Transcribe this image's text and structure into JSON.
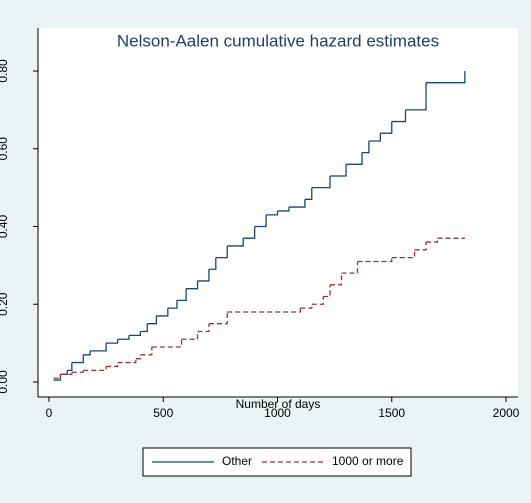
{
  "chart_data": {
    "type": "step-line",
    "title": "Nelson-Aalen cumulative hazard estimates",
    "xlabel": "Number of days",
    "xlim": [
      0,
      2000
    ],
    "xticks": [
      0,
      500,
      1000,
      1500,
      2000
    ],
    "ylim": [
      0,
      0.8
    ],
    "yticks": [
      {
        "value": 0,
        "label": "0.00"
      },
      {
        "value": 0.2,
        "label": "0.20"
      },
      {
        "value": 0.4,
        "label": "0.40"
      },
      {
        "value": 0.6,
        "label": "0.60"
      },
      {
        "value": 0.8,
        "label": "0.80"
      }
    ],
    "series": [
      {
        "name": "Other",
        "color": "#1a476f",
        "dash": false,
        "x": [
          20,
          50,
          80,
          100,
          150,
          180,
          250,
          300,
          350,
          400,
          430,
          470,
          520,
          560,
          600,
          650,
          700,
          730,
          780,
          850,
          900,
          950,
          1000,
          1050,
          1120,
          1150,
          1230,
          1300,
          1370,
          1400,
          1450,
          1500,
          1560,
          1650,
          1820
        ],
        "values": [
          0.005,
          0.02,
          0.03,
          0.05,
          0.07,
          0.08,
          0.1,
          0.11,
          0.12,
          0.13,
          0.15,
          0.17,
          0.19,
          0.21,
          0.24,
          0.26,
          0.29,
          0.32,
          0.35,
          0.37,
          0.4,
          0.43,
          0.44,
          0.45,
          0.47,
          0.5,
          0.53,
          0.56,
          0.59,
          0.62,
          0.64,
          0.67,
          0.7,
          0.77,
          0.8
        ]
      },
      {
        "name": "1000 or more",
        "color": "#90353b",
        "dash": true,
        "x": [
          20,
          50,
          100,
          150,
          250,
          300,
          380,
          400,
          450,
          580,
          650,
          700,
          780,
          1100,
          1150,
          1200,
          1230,
          1280,
          1350,
          1500,
          1600,
          1650,
          1700,
          1820
        ],
        "values": [
          0.01,
          0.02,
          0.025,
          0.03,
          0.04,
          0.05,
          0.06,
          0.07,
          0.09,
          0.11,
          0.13,
          0.15,
          0.18,
          0.19,
          0.2,
          0.22,
          0.25,
          0.28,
          0.31,
          0.32,
          0.34,
          0.36,
          0.37,
          0.37
        ]
      }
    ]
  }
}
